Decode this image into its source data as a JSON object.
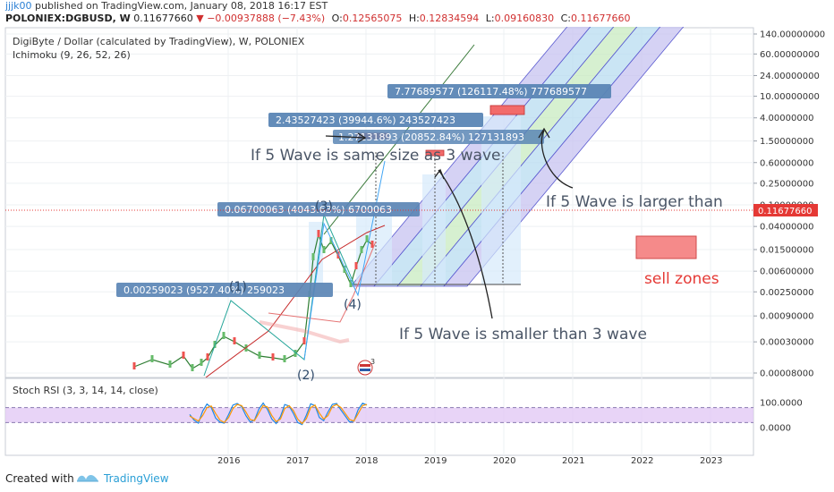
{
  "header": {
    "author": "jjjk00",
    "published": "published on TradingView.com, January 08, 2018 16:17 EST",
    "symbol": "POLONIEX:DGBUSD, W",
    "last": "0.11677660",
    "change": "−0.00937888 (−7.43%)",
    "open_label": "O:",
    "open": "0.12565075",
    "high_label": "H:",
    "high": "0.12834594",
    "low_label": "L:",
    "low": "0.09160830",
    "close_label": "C:",
    "close": "0.11677660"
  },
  "chart_data": {
    "type": "line",
    "title": "DigiByte / Dollar (calculated by TradingView), W, POLONIEX",
    "indicator": "Ichimoku (9, 26, 52, 26)",
    "y_scale": "log",
    "price_ticks": [
      "140.00000000",
      "60.00000000",
      "24.00000000",
      "10.00000000",
      "4.00000000",
      "1.50000000",
      "0.60000000",
      "0.25000000",
      "0.10000000",
      "0.04000000",
      "0.01500000",
      "0.00600000",
      "0.00250000",
      "0.00090000",
      "0.00030000",
      "0.00008000"
    ],
    "x_ticks": [
      "2016",
      "2017",
      "2018",
      "2019",
      "2020",
      "2021",
      "2022",
      "2023"
    ],
    "current_price": "0.11677660",
    "measures": [
      "0.00259023 (9527.40%) 259023",
      "0.06700063 (4043.63%) 6700063",
      "2.43527423 (39944.6%) 243527423",
      "1.27131893 (20852.84%) 127131893",
      "7.77689577 (126117.48%) 777689577"
    ],
    "wave_labels": [
      "(1)",
      "(2)",
      "(3)",
      "(4)"
    ],
    "annotations": [
      "If 5 Wave is same size as 3 wave",
      "If 5 Wave is larger than",
      "If 5 Wave is smaller than 3 wave",
      "sell zones"
    ],
    "stoch_title": "Stoch RSI (3, 3, 14, 14, close)",
    "stoch_ticks": [
      "100.0000",
      "0.0000"
    ],
    "stoch_k": [
      52,
      30,
      18,
      66,
      94,
      80,
      38,
      22,
      18,
      52,
      90,
      96,
      84,
      48,
      22,
      30,
      74,
      98,
      72,
      34,
      16,
      44,
      92,
      86,
      56,
      20,
      12,
      50,
      95,
      88,
      40,
      28,
      62,
      93,
      96,
      70,
      46,
      22,
      26,
      72,
      97,
      90
    ],
    "stoch_d": [
      46,
      36,
      26,
      48,
      80,
      86,
      56,
      30,
      20,
      40,
      76,
      92,
      88,
      62,
      32,
      28,
      58,
      88,
      82,
      48,
      24,
      34,
      76,
      88,
      68,
      34,
      16,
      36,
      80,
      90,
      58,
      34,
      48,
      84,
      92,
      80,
      56,
      32,
      26,
      56,
      88,
      92
    ]
  },
  "footer": {
    "created": "Created with",
    "brand": "TradingView"
  },
  "colors": {
    "sell_zone": "#f58a8a",
    "price_badge": "#e53935",
    "measure_box": "#5b86b5",
    "annotation": "#4a5566",
    "stoch_band": "#e2c9f5"
  }
}
